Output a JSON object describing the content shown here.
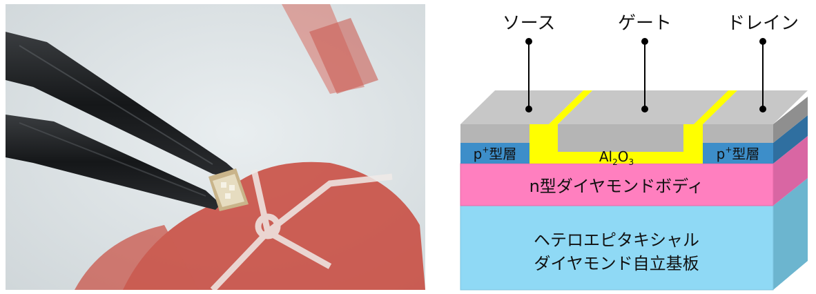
{
  "photo": {
    "background_color": "#dde3e5",
    "accent_color": "#c8463a",
    "tweezer_color": "#1b1d1f",
    "chip_color": "#c9b48a"
  },
  "diagram": {
    "terminals": {
      "source": "ソース",
      "gate": "ゲート",
      "drain": "ドレイン"
    },
    "layers": {
      "p_layer_left": {
        "prefix": "p",
        "sup": "+",
        "suffix": "型層"
      },
      "p_layer_right": {
        "prefix": "p",
        "sup": "+",
        "suffix": "型層"
      },
      "oxide": {
        "a": "Al",
        "sub1": "2",
        "b": "O",
        "sub2": "3"
      },
      "n_body": "n型ダイヤモンドボディ",
      "substrate_line1": "ヘテロエピタキシャル",
      "substrate_line2": "ダイヤモンド自立基板"
    },
    "colors": {
      "electrode": "#c7c7c7",
      "electrode_top": "#d6d6d6",
      "oxide": "#ffff00",
      "p_layer": "#3d8ec9",
      "n_body": "#ff7fbf",
      "substrate": "#8fd9f5",
      "side_substrate": "#6cb5cf",
      "side_n": "#d966a3",
      "side_p": "#2f6fa0",
      "side_electrode": "#8f8f8f"
    }
  }
}
